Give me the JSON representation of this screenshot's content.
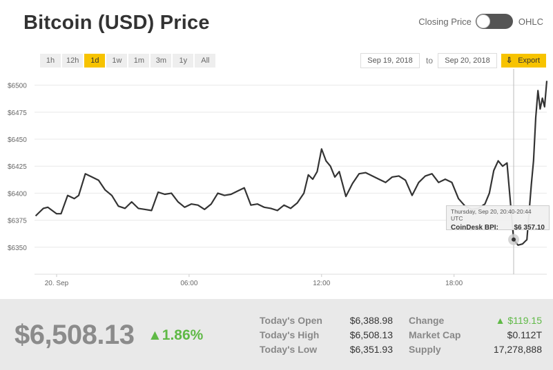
{
  "header": {
    "title": "Bitcoin (USD) Price",
    "toggle_left": "Closing Price",
    "toggle_right": "OHLC"
  },
  "ranges": [
    "1h",
    "12h",
    "1d",
    "1w",
    "1m",
    "3m",
    "1y",
    "All"
  ],
  "active_range": "1d",
  "dates": {
    "from": "Sep 19, 2018",
    "to_label": "to",
    "to": "Sep 20, 2018"
  },
  "export_label": "Export",
  "colors": {
    "accent": "#f7c300",
    "line": "#333333",
    "positive": "#5fb946",
    "grid": "#e8e8e8"
  },
  "tooltip": {
    "time": "Thursday, Sep 20, 20:40-20:44 UTC",
    "label": "CoinDesk BPI:",
    "value": "$6 357.10"
  },
  "footer": {
    "price": "$6,508.13",
    "change_pct": "1.86%",
    "stats_left": [
      {
        "label": "Today's Open",
        "value": "$6,388.98"
      },
      {
        "label": "Today's High",
        "value": "$6,508.13"
      },
      {
        "label": "Today's Low",
        "value": "$6,351.93"
      }
    ],
    "stats_right": [
      {
        "label": "Change",
        "value": "$119.15",
        "up": true
      },
      {
        "label": "Market Cap",
        "value": "$0.112T"
      },
      {
        "label": "Supply",
        "value": "17,278,888"
      }
    ]
  },
  "chart_data": {
    "type": "line",
    "title": "",
    "xlabel": "",
    "ylabel": "",
    "ylim": [
      6325,
      6510
    ],
    "y_ticks": [
      6500,
      6475,
      6450,
      6425,
      6400,
      6375,
      6350
    ],
    "y_tick_labels": [
      "$6500",
      "$6475",
      "$6450",
      "$6425",
      "$6400",
      "$6375",
      "$6350"
    ],
    "x_range_hours": [
      -1.0,
      22.2
    ],
    "x_ticks": [
      0,
      6,
      12,
      18
    ],
    "x_tick_labels": [
      "20. Sep",
      "06:00",
      "12:00",
      "18:00"
    ],
    "crosshair_hour": 20.7,
    "marker": {
      "hour": 20.7,
      "value": 6357.1
    },
    "grid": true,
    "series": [
      {
        "values_hour": [
          -0.95,
          -0.8,
          -0.6,
          -0.4,
          -0.2,
          0.0,
          0.2,
          0.5,
          0.8,
          1.0,
          1.3,
          1.6,
          1.9,
          2.2,
          2.5,
          2.8,
          3.1,
          3.4,
          3.7,
          4.0,
          4.3,
          4.6,
          4.9,
          5.2,
          5.5,
          5.8,
          6.1,
          6.4,
          6.7,
          7.0,
          7.3,
          7.6,
          7.9,
          8.2,
          8.5,
          8.8,
          9.1,
          9.4,
          9.7,
          10.0,
          10.3,
          10.6,
          10.9,
          11.2,
          11.4,
          11.6,
          11.8,
          12.0,
          12.2,
          12.4,
          12.6,
          12.8,
          13.1,
          13.4,
          13.7,
          14.0,
          14.3,
          14.6,
          14.9,
          15.2,
          15.5,
          15.8,
          16.1,
          16.4,
          16.7,
          17.0,
          17.3,
          17.6,
          17.9,
          18.2,
          18.5,
          18.8,
          19.1,
          19.4,
          19.6,
          19.8,
          20.0,
          20.2,
          20.4,
          20.7,
          20.9,
          21.1,
          21.3,
          21.5,
          21.6,
          21.7,
          21.8,
          21.9,
          22.0,
          22.1,
          22.2
        ],
        "values": [
          6379,
          6382,
          6386,
          6387,
          6384,
          6381,
          6381,
          6398,
          6395,
          6398,
          6418,
          6415,
          6412,
          6403,
          6398,
          6388,
          6386,
          6392,
          6386,
          6385,
          6384,
          6401,
          6399,
          6400,
          6392,
          6387,
          6390,
          6389,
          6385,
          6390,
          6400,
          6398,
          6399,
          6402,
          6405,
          6389,
          6390,
          6387,
          6386,
          6384,
          6389,
          6386,
          6391,
          6400,
          6417,
          6413,
          6420,
          6441,
          6430,
          6425,
          6415,
          6420,
          6397,
          6409,
          6418,
          6419,
          6416,
          6413,
          6410,
          6415,
          6416,
          6412,
          6398,
          6410,
          6416,
          6418,
          6410,
          6413,
          6410,
          6395,
          6388,
          6385,
          6386,
          6390,
          6400,
          6421,
          6430,
          6425,
          6428,
          6357.1,
          6351.9,
          6353,
          6357,
          6408,
          6430,
          6470,
          6495,
          6478,
          6488,
          6480,
          6504
        ]
      }
    ]
  }
}
